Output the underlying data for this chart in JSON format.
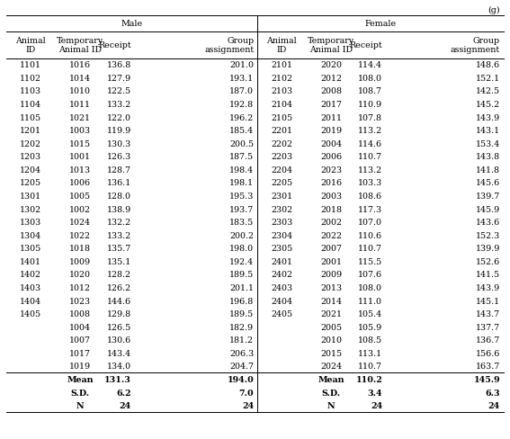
{
  "title_right": "(g)",
  "male_header": "Male",
  "female_header": "Female",
  "col_headers": [
    "Animal\nID",
    "Temporary\nAnimal ID",
    "Receipt",
    "Group\nassignment"
  ],
  "male_rows": [
    [
      "1101",
      "1016",
      "136.8",
      "201.0"
    ],
    [
      "1102",
      "1014",
      "127.9",
      "193.1"
    ],
    [
      "1103",
      "1010",
      "122.5",
      "187.0"
    ],
    [
      "1104",
      "1011",
      "133.2",
      "192.8"
    ],
    [
      "1105",
      "1021",
      "122.0",
      "196.2"
    ],
    [
      "1201",
      "1003",
      "119.9",
      "185.4"
    ],
    [
      "1202",
      "1015",
      "130.3",
      "200.5"
    ],
    [
      "1203",
      "1001",
      "126.3",
      "187.5"
    ],
    [
      "1204",
      "1013",
      "128.7",
      "198.4"
    ],
    [
      "1205",
      "1006",
      "136.1",
      "198.1"
    ],
    [
      "1301",
      "1005",
      "128.0",
      "195.3"
    ],
    [
      "1302",
      "1002",
      "138.9",
      "193.7"
    ],
    [
      "1303",
      "1024",
      "132.2",
      "183.5"
    ],
    [
      "1304",
      "1022",
      "133.2",
      "200.2"
    ],
    [
      "1305",
      "1018",
      "135.7",
      "198.0"
    ],
    [
      "1401",
      "1009",
      "135.1",
      "192.4"
    ],
    [
      "1402",
      "1020",
      "128.2",
      "189.5"
    ],
    [
      "1403",
      "1012",
      "126.2",
      "201.1"
    ],
    [
      "1404",
      "1023",
      "144.6",
      "196.8"
    ],
    [
      "1405",
      "1008",
      "129.8",
      "189.5"
    ],
    [
      "",
      "1004",
      "126.5",
      "182.9"
    ],
    [
      "",
      "1007",
      "130.6",
      "181.2"
    ],
    [
      "",
      "1017",
      "143.4",
      "206.3"
    ],
    [
      "",
      "1019",
      "134.0",
      "204.7"
    ]
  ],
  "male_summary": [
    [
      "",
      "Mean",
      "131.3",
      "194.0"
    ],
    [
      "",
      "S.D.",
      "6.2",
      "7.0"
    ],
    [
      "",
      "N",
      "24",
      "24"
    ]
  ],
  "female_rows": [
    [
      "2101",
      "2020",
      "114.4",
      "148.6"
    ],
    [
      "2102",
      "2012",
      "108.0",
      "152.1"
    ],
    [
      "2103",
      "2008",
      "108.7",
      "142.5"
    ],
    [
      "2104",
      "2017",
      "110.9",
      "145.2"
    ],
    [
      "2105",
      "2011",
      "107.8",
      "143.9"
    ],
    [
      "2201",
      "2019",
      "113.2",
      "143.1"
    ],
    [
      "2202",
      "2004",
      "114.6",
      "153.4"
    ],
    [
      "2203",
      "2006",
      "110.7",
      "143.8"
    ],
    [
      "2204",
      "2023",
      "113.2",
      "141.8"
    ],
    [
      "2205",
      "2016",
      "103.3",
      "145.6"
    ],
    [
      "2301",
      "2003",
      "108.6",
      "139.7"
    ],
    [
      "2302",
      "2018",
      "117.3",
      "145.9"
    ],
    [
      "2303",
      "2002",
      "107.0",
      "143.6"
    ],
    [
      "2304",
      "2022",
      "110.6",
      "152.3"
    ],
    [
      "2305",
      "2007",
      "110.7",
      "139.9"
    ],
    [
      "2401",
      "2001",
      "115.5",
      "152.6"
    ],
    [
      "2402",
      "2009",
      "107.6",
      "141.5"
    ],
    [
      "2403",
      "2013",
      "108.0",
      "143.9"
    ],
    [
      "2404",
      "2014",
      "111.0",
      "145.1"
    ],
    [
      "2405",
      "2021",
      "105.4",
      "143.7"
    ],
    [
      "",
      "2005",
      "105.9",
      "137.7"
    ],
    [
      "",
      "2010",
      "108.5",
      "136.7"
    ],
    [
      "",
      "2015",
      "113.1",
      "156.6"
    ],
    [
      "",
      "2024",
      "110.7",
      "163.7"
    ]
  ],
  "female_summary": [
    [
      "",
      "Mean",
      "110.2",
      "145.9"
    ],
    [
      "",
      "S.D.",
      "3.4",
      "6.3"
    ],
    [
      "",
      "N",
      "24",
      "24"
    ]
  ],
  "font_size": 6.8,
  "bold_font_size": 6.8,
  "fig_width": 5.67,
  "fig_height": 4.89,
  "dpi": 100
}
